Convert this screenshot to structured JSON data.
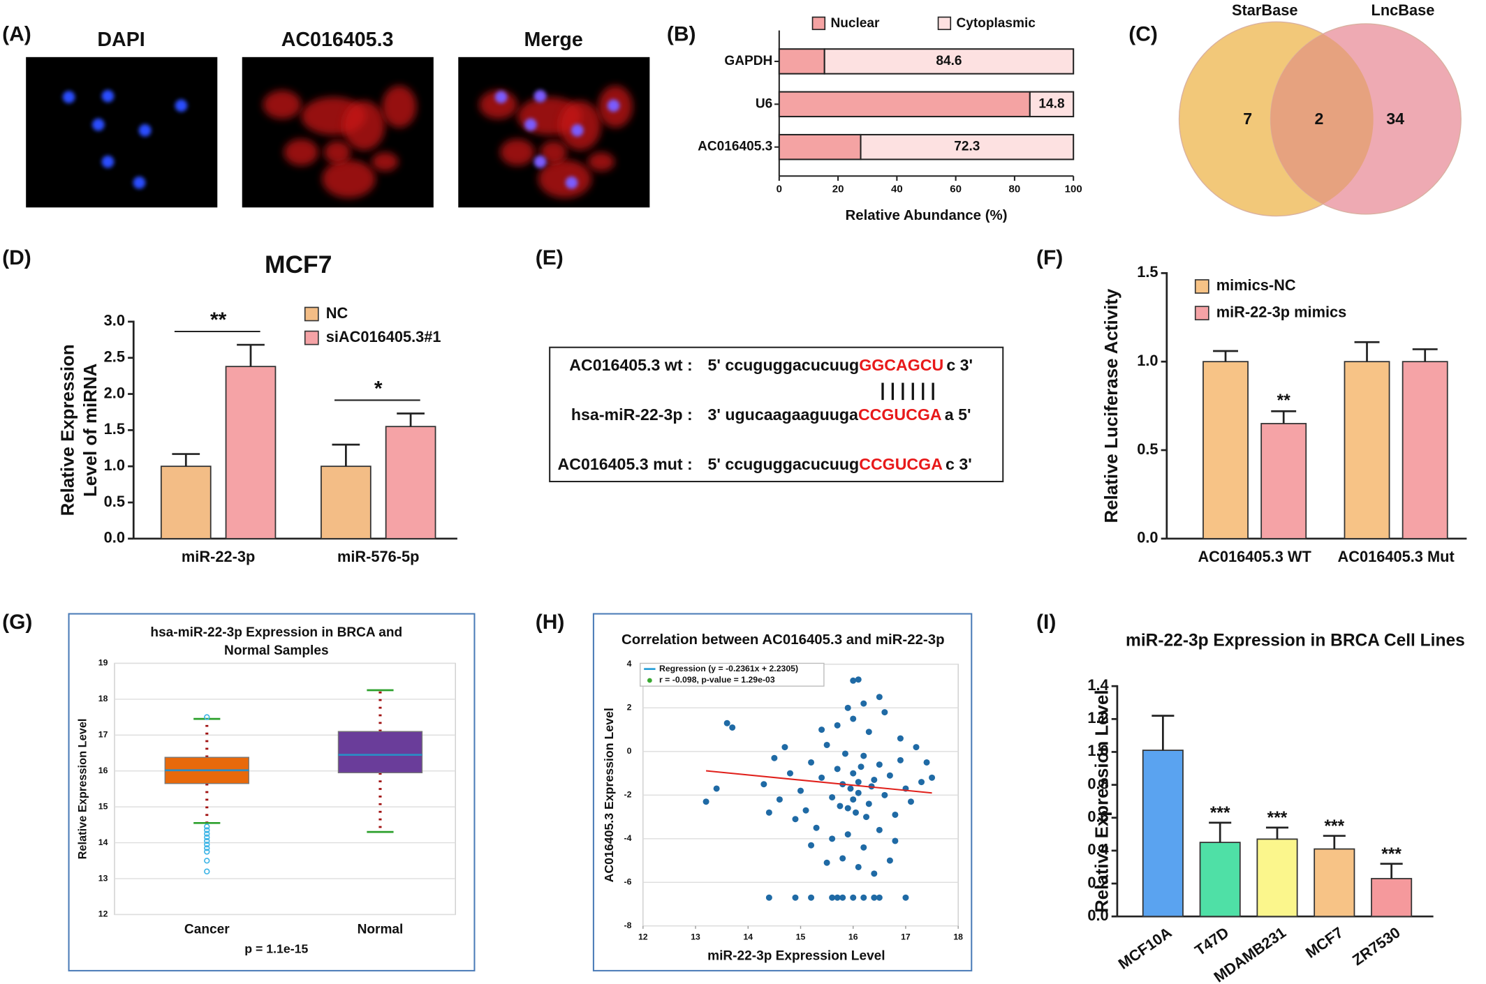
{
  "figure_a": {
    "panel": "(A)",
    "labels": [
      "DAPI",
      "AC016405.3",
      "Merge"
    ]
  },
  "figure_e": {
    "panel": "(E)",
    "rows": [
      {
        "label": "AC016405.3 wt :",
        "seq": "5' ccuguggacucuug",
        "site": "GGCAGCU",
        "end": "c 3'"
      },
      {
        "label": "hsa-miR-22-3p :",
        "seq": "3' ugucaagaaguuga",
        "site": "CCGUCGA",
        "end": "a 5'"
      },
      {
        "label": "AC016405.3 mut :",
        "seq": "5' ccuguggacucuug",
        "site": "CCGUCGA",
        "end": "c 3'"
      }
    ],
    "match": "| | | | | |"
  },
  "chart_data": [
    {
      "type": "stacked_barh",
      "panel": "(B)",
      "categories": [
        "GAPDH",
        "U6",
        "AC016405.3"
      ],
      "series": [
        {
          "name": "Nuclear",
          "color": "#f4a3a3",
          "values": [
            15.4,
            85.2,
            27.7
          ]
        },
        {
          "name": "Cytoplasmic",
          "color": "#fde1e1",
          "values": [
            84.6,
            14.8,
            72.3
          ],
          "labeled": true
        }
      ],
      "xlim": [
        0,
        100
      ],
      "xticks": [
        0,
        20,
        40,
        60,
        80,
        100
      ],
      "xlabel": "Relative Abundance (%)"
    },
    {
      "type": "venn",
      "panel": "(C)",
      "sets": [
        {
          "name": "StarBase",
          "color": "#f2c879",
          "only": 7
        },
        {
          "name": "LncBase",
          "color": "#eeaab3",
          "only": 34
        }
      ],
      "overlap": 2,
      "overlap_color": "#e6a27f"
    },
    {
      "type": "bar",
      "panel": "(D)",
      "title": "MCF7",
      "ylabel": [
        "Relative Expression",
        "Level of miRNA"
      ],
      "categories": [
        "miR-22-3p",
        "miR-576-5p"
      ],
      "series": [
        {
          "name": "NC",
          "color": "#f3bd86",
          "values": [
            1.0,
            1.0
          ],
          "errors": [
            0.17,
            0.3
          ]
        },
        {
          "name": "siAC016405.3#1",
          "color": "#f5a3a6",
          "values": [
            2.38,
            1.55
          ],
          "errors": [
            0.3,
            0.18
          ]
        }
      ],
      "ylim": [
        0,
        3
      ],
      "yticks": [
        {
          "value": 0,
          "label": "0.0"
        },
        0.5,
        {
          "value": 1,
          "label": "1.0"
        },
        1.5,
        {
          "value": 2,
          "label": "2.0"
        },
        2.5,
        {
          "value": 3,
          "label": "3.0"
        }
      ],
      "annotations": [
        {
          "text": "**",
          "category": 0
        },
        {
          "text": "*",
          "category": 1
        }
      ]
    },
    {
      "type": "bar",
      "panel": "(F)",
      "ylabel": "Relative Luciferase Activity",
      "categories": [
        "AC016405.3 WT",
        "AC016405.3 Mut"
      ],
      "series": [
        {
          "name": "mimics-NC",
          "color": "#f7c386",
          "values": [
            1.0,
            1.0
          ],
          "errors": [
            0.06,
            0.11
          ]
        },
        {
          "name": "miR-22-3p mimics",
          "color": "#f5a3a6",
          "values": [
            0.65,
            1.0
          ],
          "errors": [
            0.07,
            0.07
          ]
        }
      ],
      "ylim": [
        0,
        1.5
      ],
      "yticks": [
        {
          "value": 0,
          "label": "0.0"
        },
        0.5,
        {
          "value": 1,
          "label": "1.0"
        },
        1.5
      ],
      "annotations": [
        {
          "text": "**",
          "category": 0,
          "series": 1
        }
      ]
    },
    {
      "type": "box",
      "panel": "(G)",
      "title": [
        "hsa-miR-22-3p Expression in BRCA and",
        "Normal Samples"
      ],
      "ylabel": "Relative Expression Level",
      "note": "p = 1.1e-15",
      "categories": [
        "Cancer",
        "Normal"
      ],
      "colors": [
        "#e8690b",
        "#6a3d9a"
      ],
      "boxes": [
        {
          "whislo": 14.55,
          "q1": 15.65,
          "median": 16.02,
          "q3": 16.38,
          "whishi": 17.45,
          "fliers": [
            17.5,
            14.45,
            14.35,
            14.25,
            14.15,
            14.05,
            13.95,
            13.85,
            13.75,
            13.5,
            13.2
          ]
        },
        {
          "whislo": 14.3,
          "q1": 15.95,
          "median": 16.45,
          "q3": 17.1,
          "whishi": 18.25,
          "fliers": []
        }
      ],
      "ylim": [
        12,
        19
      ],
      "yticks": [
        12,
        13,
        14,
        15,
        16,
        17,
        18,
        19
      ],
      "grid": true
    },
    {
      "type": "scatter",
      "panel": "(H)",
      "title": "Correlation between AC016405.3 and miR-22-3p",
      "xlabel": "miR-22-3p Expression Level",
      "ylabel": "AC016405.3 Expression Level",
      "legend": [
        "Regression (y = -0.2361x + 2.2305)",
        "r = -0.098, p-value = 1.29e-03"
      ],
      "legend_colors": [
        "#2aa0d8",
        "#3aa832"
      ],
      "point_color": "#1f6aa5",
      "line_color": "#e0201b",
      "x": [
        15.2,
        15.4,
        15.5,
        15.6,
        15.7,
        15.8,
        15.9,
        16.0,
        16.1,
        16.2,
        16.3,
        16.4,
        16.5,
        16.6,
        16.7,
        16.8,
        16.9,
        17.0,
        17.1,
        15.0,
        14.8,
        14.6,
        14.5,
        14.9,
        15.1,
        15.3,
        15.6,
        15.9,
        16.2,
        16.5,
        16.8,
        15.8,
        16.1,
        16.4,
        15.5,
        16.7,
        15.7,
        16.0,
        16.3,
        16.6,
        16.9,
        15.4,
        16.2,
        16.5,
        15.9,
        17.2,
        17.3,
        14.3,
        14.4,
        14.7,
        15.2,
        16.0,
        16.1,
        15.95,
        16.05,
        16.15,
        15.85,
        16.25,
        15.75,
        16.35,
        13.6,
        13.7,
        13.4,
        13.2,
        16.0,
        16.1,
        17.4,
        17.5,
        14.4,
        14.9,
        15.2,
        15.6,
        15.7,
        15.8,
        16.0,
        16.2,
        16.4,
        16.5,
        17.0
      ],
      "y": [
        -0.5,
        -1.2,
        0.3,
        -2.1,
        -0.8,
        -1.5,
        -2.6,
        -1.0,
        -1.9,
        -0.2,
        -2.4,
        -1.3,
        -0.6,
        -2.0,
        -1.1,
        -2.9,
        -0.4,
        -1.7,
        -2.3,
        -1.8,
        -1.0,
        -2.2,
        -0.3,
        -3.1,
        -2.7,
        -3.5,
        -4.0,
        -3.8,
        -4.4,
        -3.6,
        -4.1,
        -4.9,
        -5.3,
        -5.6,
        -5.1,
        -5.0,
        1.2,
        1.5,
        0.9,
        1.8,
        0.6,
        1.0,
        2.2,
        2.5,
        2.0,
        0.2,
        -1.4,
        -1.5,
        -2.8,
        0.2,
        -4.3,
        -2.2,
        -1.4,
        -1.7,
        -2.8,
        -0.7,
        -0.1,
        -3.0,
        -2.5,
        -1.6,
        1.3,
        1.1,
        -1.7,
        -2.3,
        3.25,
        3.3,
        -0.5,
        -1.2,
        -6.7,
        -6.7,
        -6.7,
        -6.7,
        -6.7,
        -6.7,
        -6.7,
        -6.7,
        -6.7,
        -6.7,
        -6.7
      ],
      "line": {
        "x": [
          13.2,
          17.5
        ],
        "y": [
          -0.886,
          -1.901
        ]
      },
      "xlim": [
        12,
        18
      ],
      "xticks": [
        12,
        13,
        14,
        15,
        16,
        17,
        18
      ],
      "ylim": [
        -8,
        4
      ],
      "yticks": [
        -8,
        -6,
        -4,
        -2,
        0,
        2,
        4
      ],
      "grid": true
    },
    {
      "type": "bar",
      "panel": "(I)",
      "title": "miR-22-3p Expression in BRCA Cell Lines",
      "ylabel": "Relative Expression Level",
      "categories": [
        "MCF10A",
        "T47D",
        "MDAMB231",
        "MCF7",
        "ZR7530"
      ],
      "values": [
        1.01,
        0.45,
        0.47,
        0.41,
        0.23
      ],
      "errors": [
        0.21,
        0.12,
        0.07,
        0.08,
        0.09
      ],
      "colors": [
        "#5aa3f0",
        "#4fe0a6",
        "#fbf68c",
        "#f7c386",
        "#f5999c"
      ],
      "ylim": [
        0,
        1.4
      ],
      "yticks": [
        {
          "value": 0,
          "label": "0.0"
        },
        0.2,
        0.4,
        0.6,
        0.8,
        {
          "value": 1,
          "label": "1.0"
        },
        1.2,
        1.4
      ],
      "annotations": [
        {
          "text": "***",
          "category": 1
        },
        {
          "text": "***",
          "category": 2
        },
        {
          "text": "***",
          "category": 3
        },
        {
          "text": "***",
          "category": 4
        }
      ]
    }
  ]
}
